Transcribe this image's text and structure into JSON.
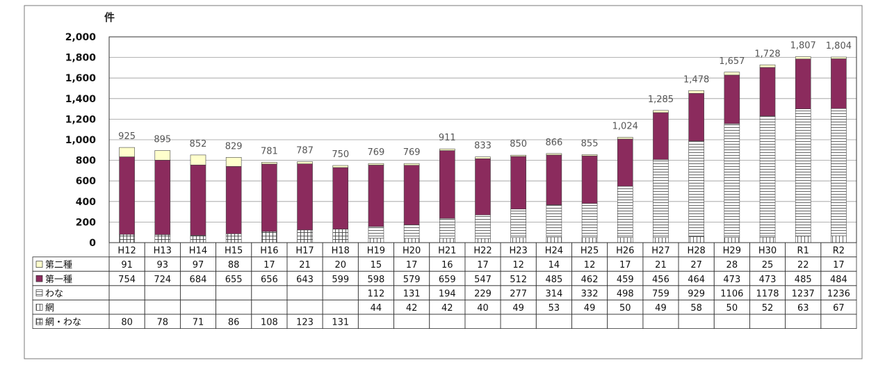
{
  "chart_data": {
    "type": "bar",
    "stacked": true,
    "unit_label": "件",
    "ylim": [
      0,
      2000
    ],
    "yticks": [
      "0",
      "200",
      "400",
      "600",
      "800",
      "1,000",
      "1,200",
      "1,400",
      "1,600",
      "1,800",
      "2,000"
    ],
    "grid": true,
    "legend": "data-table-left",
    "categories": [
      "H12",
      "H13",
      "H14",
      "H15",
      "H16",
      "H17",
      "H18",
      "H19",
      "H20",
      "H21",
      "H22",
      "H23",
      "H24",
      "H25",
      "H26",
      "H27",
      "H28",
      "H29",
      "H30",
      "R1",
      "R2"
    ],
    "totals": [
      "925",
      "895",
      "852",
      "829",
      "781",
      "787",
      "750",
      "769",
      "769",
      "911",
      "833",
      "850",
      "866",
      "855",
      "1,024",
      "1,285",
      "1,478",
      "1,657",
      "1,728",
      "1,807",
      "1,804"
    ],
    "series": [
      {
        "name": "第二種",
        "key": "s2",
        "color": "#ffffcc",
        "values": [
          91,
          93,
          97,
          88,
          17,
          21,
          20,
          15,
          17,
          16,
          17,
          12,
          14,
          12,
          17,
          21,
          27,
          28,
          25,
          22,
          17
        ]
      },
      {
        "name": "第一種",
        "key": "s1",
        "color": "#8b2b5d",
        "values": [
          754,
          724,
          684,
          655,
          656,
          643,
          599,
          598,
          579,
          659,
          547,
          512,
          485,
          462,
          459,
          456,
          464,
          473,
          473,
          485,
          484
        ]
      },
      {
        "name": "わな",
        "key": "wana",
        "color": "#ffffff",
        "values": [
          null,
          null,
          null,
          null,
          null,
          null,
          null,
          112,
          131,
          194,
          229,
          277,
          314,
          332,
          498,
          759,
          929,
          1106,
          1178,
          1237,
          1236
        ]
      },
      {
        "name": "網",
        "key": "ami",
        "color": "#ffffff",
        "values": [
          null,
          null,
          null,
          null,
          null,
          null,
          null,
          44,
          42,
          42,
          40,
          49,
          53,
          49,
          50,
          49,
          58,
          50,
          52,
          63,
          67
        ]
      },
      {
        "name": "網・わな",
        "key": "amiwana",
        "color": "#ffffff",
        "values": [
          80,
          78,
          71,
          86,
          108,
          123,
          131,
          null,
          null,
          null,
          null,
          null,
          null,
          null,
          null,
          null,
          null,
          null,
          null,
          null,
          null
        ]
      }
    ]
  }
}
